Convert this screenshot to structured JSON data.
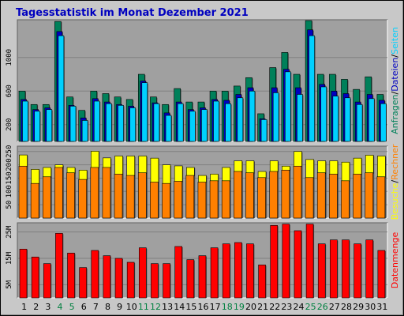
{
  "title": "Tagesstatistik im Monat Dezember 2021",
  "colors": {
    "anfragen": "#00805a",
    "dateien": "#0000c0",
    "seiten": "#00d0ff",
    "besuche": "#ffff00",
    "rechner": "#ff8000",
    "datenmenge": "#ff0000",
    "weekend_day": "#008040",
    "title": "#0000c0"
  },
  "chart_data": [
    {
      "type": "bar",
      "name": "requests-panel",
      "side_label": [
        {
          "text": "Anfragen",
          "color": "#00805a"
        },
        {
          "text": "/",
          "color": "#000000"
        },
        {
          "text": "Dateien",
          "color": "#0000c0"
        },
        {
          "text": "/",
          "color": "#000000"
        },
        {
          "text": "Seiten",
          "color": "#00d0ff"
        }
      ],
      "y_ticks": [
        "200",
        "600",
        "1000"
      ],
      "ylim": [
        0,
        1450
      ],
      "series": [
        {
          "name": "Anfragen",
          "values": [
            600,
            440,
            440,
            1430,
            530,
            370,
            600,
            570,
            530,
            500,
            800,
            530,
            440,
            630,
            470,
            470,
            600,
            600,
            660,
            760,
            330,
            880,
            1060,
            800,
            1440,
            800,
            800,
            740,
            620,
            770,
            560
          ]
        },
        {
          "name": "Dateien",
          "values": [
            500,
            380,
            400,
            1310,
            430,
            280,
            510,
            470,
            440,
            420,
            720,
            460,
            340,
            470,
            380,
            400,
            500,
            490,
            560,
            640,
            270,
            640,
            860,
            640,
            1330,
            680,
            600,
            570,
            470,
            560,
            490
          ]
        },
        {
          "name": "Seiten",
          "values": [
            480,
            360,
            380,
            1260,
            420,
            250,
            480,
            450,
            430,
            400,
            700,
            450,
            310,
            450,
            360,
            380,
            480,
            450,
            520,
            600,
            260,
            580,
            830,
            560,
            1260,
            650,
            540,
            520,
            440,
            510,
            450
          ]
        }
      ]
    },
    {
      "type": "bar",
      "name": "visits-panel",
      "side_label": [
        {
          "text": "Besuche",
          "color": "#ffff00"
        },
        {
          "text": "/",
          "color": "#000000"
        },
        {
          "text": "Rechner",
          "color": "#ff8000"
        }
      ],
      "y_ticks": [
        "50",
        "100",
        "150",
        "200",
        "250"
      ],
      "ylim": [
        0,
        270
      ],
      "series": [
        {
          "name": "Besuche",
          "values": [
            237,
            183,
            190,
            200,
            190,
            180,
            251,
            226,
            233,
            233,
            233,
            225,
            200,
            196,
            190,
            160,
            165,
            190,
            215,
            215,
            175,
            215,
            195,
            250,
            220,
            215,
            215,
            210,
            225,
            236,
            233
          ]
        },
        {
          "name": "Rechner",
          "values": [
            195,
            130,
            155,
            190,
            170,
            145,
            190,
            190,
            165,
            160,
            170,
            135,
            130,
            138,
            160,
            135,
            140,
            140,
            175,
            170,
            152,
            175,
            180,
            195,
            152,
            170,
            165,
            140,
            165,
            170,
            155
          ]
        }
      ]
    },
    {
      "type": "bar",
      "name": "volume-panel",
      "side_label": [
        {
          "text": "Datenmenge",
          "color": "#ff0000"
        }
      ],
      "y_ticks": [
        "5M",
        "15M",
        "25M"
      ],
      "ylim": [
        0,
        28.5
      ],
      "series": [
        {
          "name": "Datenmenge",
          "values": [
            18.5,
            15.5,
            13,
            24.5,
            17,
            11.5,
            18,
            16,
            15,
            13.5,
            19,
            13,
            13,
            19.5,
            14.5,
            16,
            19,
            20.5,
            21,
            20.5,
            12.5,
            27.5,
            28,
            25.5,
            28,
            20.5,
            22,
            22,
            20.5,
            22,
            18
          ]
        }
      ]
    }
  ],
  "x_labels": [
    "1",
    "2",
    "3",
    "4",
    "5",
    "6",
    "7",
    "8",
    "9",
    "10",
    "11",
    "12",
    "13",
    "14",
    "15",
    "16",
    "17",
    "18",
    "19",
    "20",
    "21",
    "22",
    "23",
    "24",
    "25",
    "26",
    "27",
    "28",
    "29",
    "30",
    "31"
  ],
  "weekend_days": [
    4,
    5,
    11,
    12,
    18,
    19,
    25,
    26
  ]
}
